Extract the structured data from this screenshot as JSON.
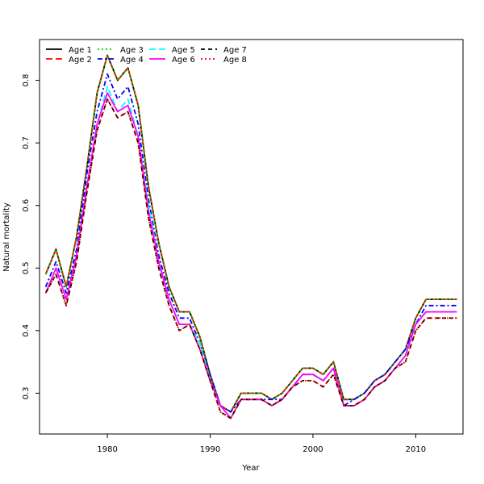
{
  "chart_data": {
    "type": "line",
    "xlabel": "Year",
    "ylabel": "Natural mortality",
    "xlim": [
      1973.4,
      2014.6
    ],
    "ylim": [
      0.2348,
      0.8652
    ],
    "xticks": [
      1980,
      1990,
      2000,
      2010
    ],
    "yticks": [
      0.3,
      0.4,
      0.5,
      0.6,
      0.7,
      0.8
    ],
    "legend_position": "top-left",
    "x": [
      1974,
      1975,
      1976,
      1977,
      1978,
      1979,
      1980,
      1981,
      1982,
      1983,
      1984,
      1985,
      1986,
      1987,
      1988,
      1989,
      1990,
      1991,
      1992,
      1993,
      1994,
      1995,
      1996,
      1997,
      1998,
      1999,
      2000,
      2001,
      2002,
      2003,
      2004,
      2005,
      2006,
      2007,
      2008,
      2009,
      2010,
      2011,
      2012,
      2013,
      2014
    ],
    "series": [
      {
        "name": "Age 1",
        "color": "#000000",
        "dash": "solid",
        "values": [
          0.49,
          0.53,
          0.47,
          0.55,
          0.66,
          0.78,
          0.84,
          0.8,
          0.82,
          0.76,
          0.63,
          0.54,
          0.47,
          0.43,
          0.43,
          0.39,
          0.33,
          0.28,
          0.27,
          0.3,
          0.3,
          0.3,
          0.29,
          0.3,
          0.32,
          0.34,
          0.34,
          0.33,
          0.35,
          0.29,
          0.29,
          0.3,
          0.32,
          0.33,
          0.35,
          0.37,
          0.42,
          0.45,
          0.45,
          0.45,
          0.45
        ]
      },
      {
        "name": "Age 2",
        "color": "#ff0000",
        "dash": "longdash",
        "values": [
          0.49,
          0.53,
          0.47,
          0.55,
          0.66,
          0.78,
          0.84,
          0.8,
          0.82,
          0.76,
          0.63,
          0.54,
          0.47,
          0.43,
          0.43,
          0.39,
          0.33,
          0.28,
          0.27,
          0.3,
          0.3,
          0.3,
          0.29,
          0.3,
          0.32,
          0.34,
          0.34,
          0.33,
          0.35,
          0.29,
          0.29,
          0.3,
          0.32,
          0.33,
          0.35,
          0.37,
          0.42,
          0.45,
          0.45,
          0.45,
          0.45
        ]
      },
      {
        "name": "Age 3",
        "color": "#00cd00",
        "dash": "dotted",
        "values": [
          0.49,
          0.53,
          0.47,
          0.55,
          0.66,
          0.78,
          0.84,
          0.8,
          0.82,
          0.76,
          0.63,
          0.54,
          0.47,
          0.43,
          0.43,
          0.39,
          0.33,
          0.28,
          0.27,
          0.3,
          0.3,
          0.3,
          0.29,
          0.3,
          0.32,
          0.34,
          0.34,
          0.33,
          0.35,
          0.29,
          0.29,
          0.3,
          0.32,
          0.33,
          0.35,
          0.37,
          0.42,
          0.45,
          0.45,
          0.45,
          0.45
        ]
      },
      {
        "name": "Age 4",
        "color": "#0000ff",
        "dash": "dashdot",
        "values": [
          0.47,
          0.51,
          0.46,
          0.53,
          0.65,
          0.75,
          0.81,
          0.77,
          0.79,
          0.73,
          0.61,
          0.52,
          0.46,
          0.42,
          0.42,
          0.38,
          0.33,
          0.28,
          0.27,
          0.29,
          0.29,
          0.29,
          0.29,
          0.29,
          0.31,
          0.33,
          0.33,
          0.32,
          0.34,
          0.28,
          0.29,
          0.3,
          0.32,
          0.33,
          0.35,
          0.37,
          0.41,
          0.44,
          0.44,
          0.44,
          0.44
        ]
      },
      {
        "name": "Age 5",
        "color": "#00ffff",
        "dash": "longdash",
        "values": [
          0.46,
          0.5,
          0.45,
          0.52,
          0.63,
          0.73,
          0.79,
          0.75,
          0.77,
          0.71,
          0.6,
          0.51,
          0.45,
          0.41,
          0.41,
          0.38,
          0.32,
          0.28,
          0.26,
          0.29,
          0.29,
          0.29,
          0.28,
          0.29,
          0.31,
          0.33,
          0.33,
          0.32,
          0.34,
          0.28,
          0.28,
          0.29,
          0.31,
          0.32,
          0.34,
          0.36,
          0.41,
          0.43,
          0.43,
          0.43,
          0.43
        ]
      },
      {
        "name": "Age 6",
        "color": "#ff00ff",
        "dash": "solid",
        "values": [
          0.46,
          0.5,
          0.45,
          0.52,
          0.63,
          0.73,
          0.78,
          0.75,
          0.76,
          0.71,
          0.59,
          0.51,
          0.45,
          0.41,
          0.41,
          0.37,
          0.32,
          0.28,
          0.26,
          0.29,
          0.29,
          0.29,
          0.28,
          0.29,
          0.31,
          0.33,
          0.33,
          0.32,
          0.34,
          0.28,
          0.28,
          0.29,
          0.31,
          0.32,
          0.34,
          0.36,
          0.41,
          0.43,
          0.43,
          0.43,
          0.43
        ]
      },
      {
        "name": "Age 7",
        "color": "#000000",
        "dash": "dashed",
        "values": [
          0.46,
          0.49,
          0.44,
          0.51,
          0.62,
          0.72,
          0.77,
          0.74,
          0.75,
          0.7,
          0.58,
          0.5,
          0.44,
          0.4,
          0.41,
          0.37,
          0.32,
          0.27,
          0.26,
          0.29,
          0.29,
          0.29,
          0.28,
          0.29,
          0.31,
          0.32,
          0.32,
          0.31,
          0.33,
          0.28,
          0.28,
          0.29,
          0.31,
          0.32,
          0.34,
          0.35,
          0.4,
          0.42,
          0.42,
          0.42,
          0.42
        ]
      },
      {
        "name": "Age 8",
        "color": "#ff0000",
        "dash": "dotted",
        "values": [
          0.46,
          0.49,
          0.44,
          0.51,
          0.62,
          0.72,
          0.77,
          0.74,
          0.75,
          0.7,
          0.58,
          0.5,
          0.44,
          0.4,
          0.41,
          0.37,
          0.32,
          0.27,
          0.26,
          0.29,
          0.29,
          0.29,
          0.28,
          0.29,
          0.31,
          0.32,
          0.32,
          0.31,
          0.33,
          0.28,
          0.28,
          0.29,
          0.31,
          0.32,
          0.34,
          0.35,
          0.4,
          0.42,
          0.42,
          0.42,
          0.42
        ]
      }
    ]
  }
}
